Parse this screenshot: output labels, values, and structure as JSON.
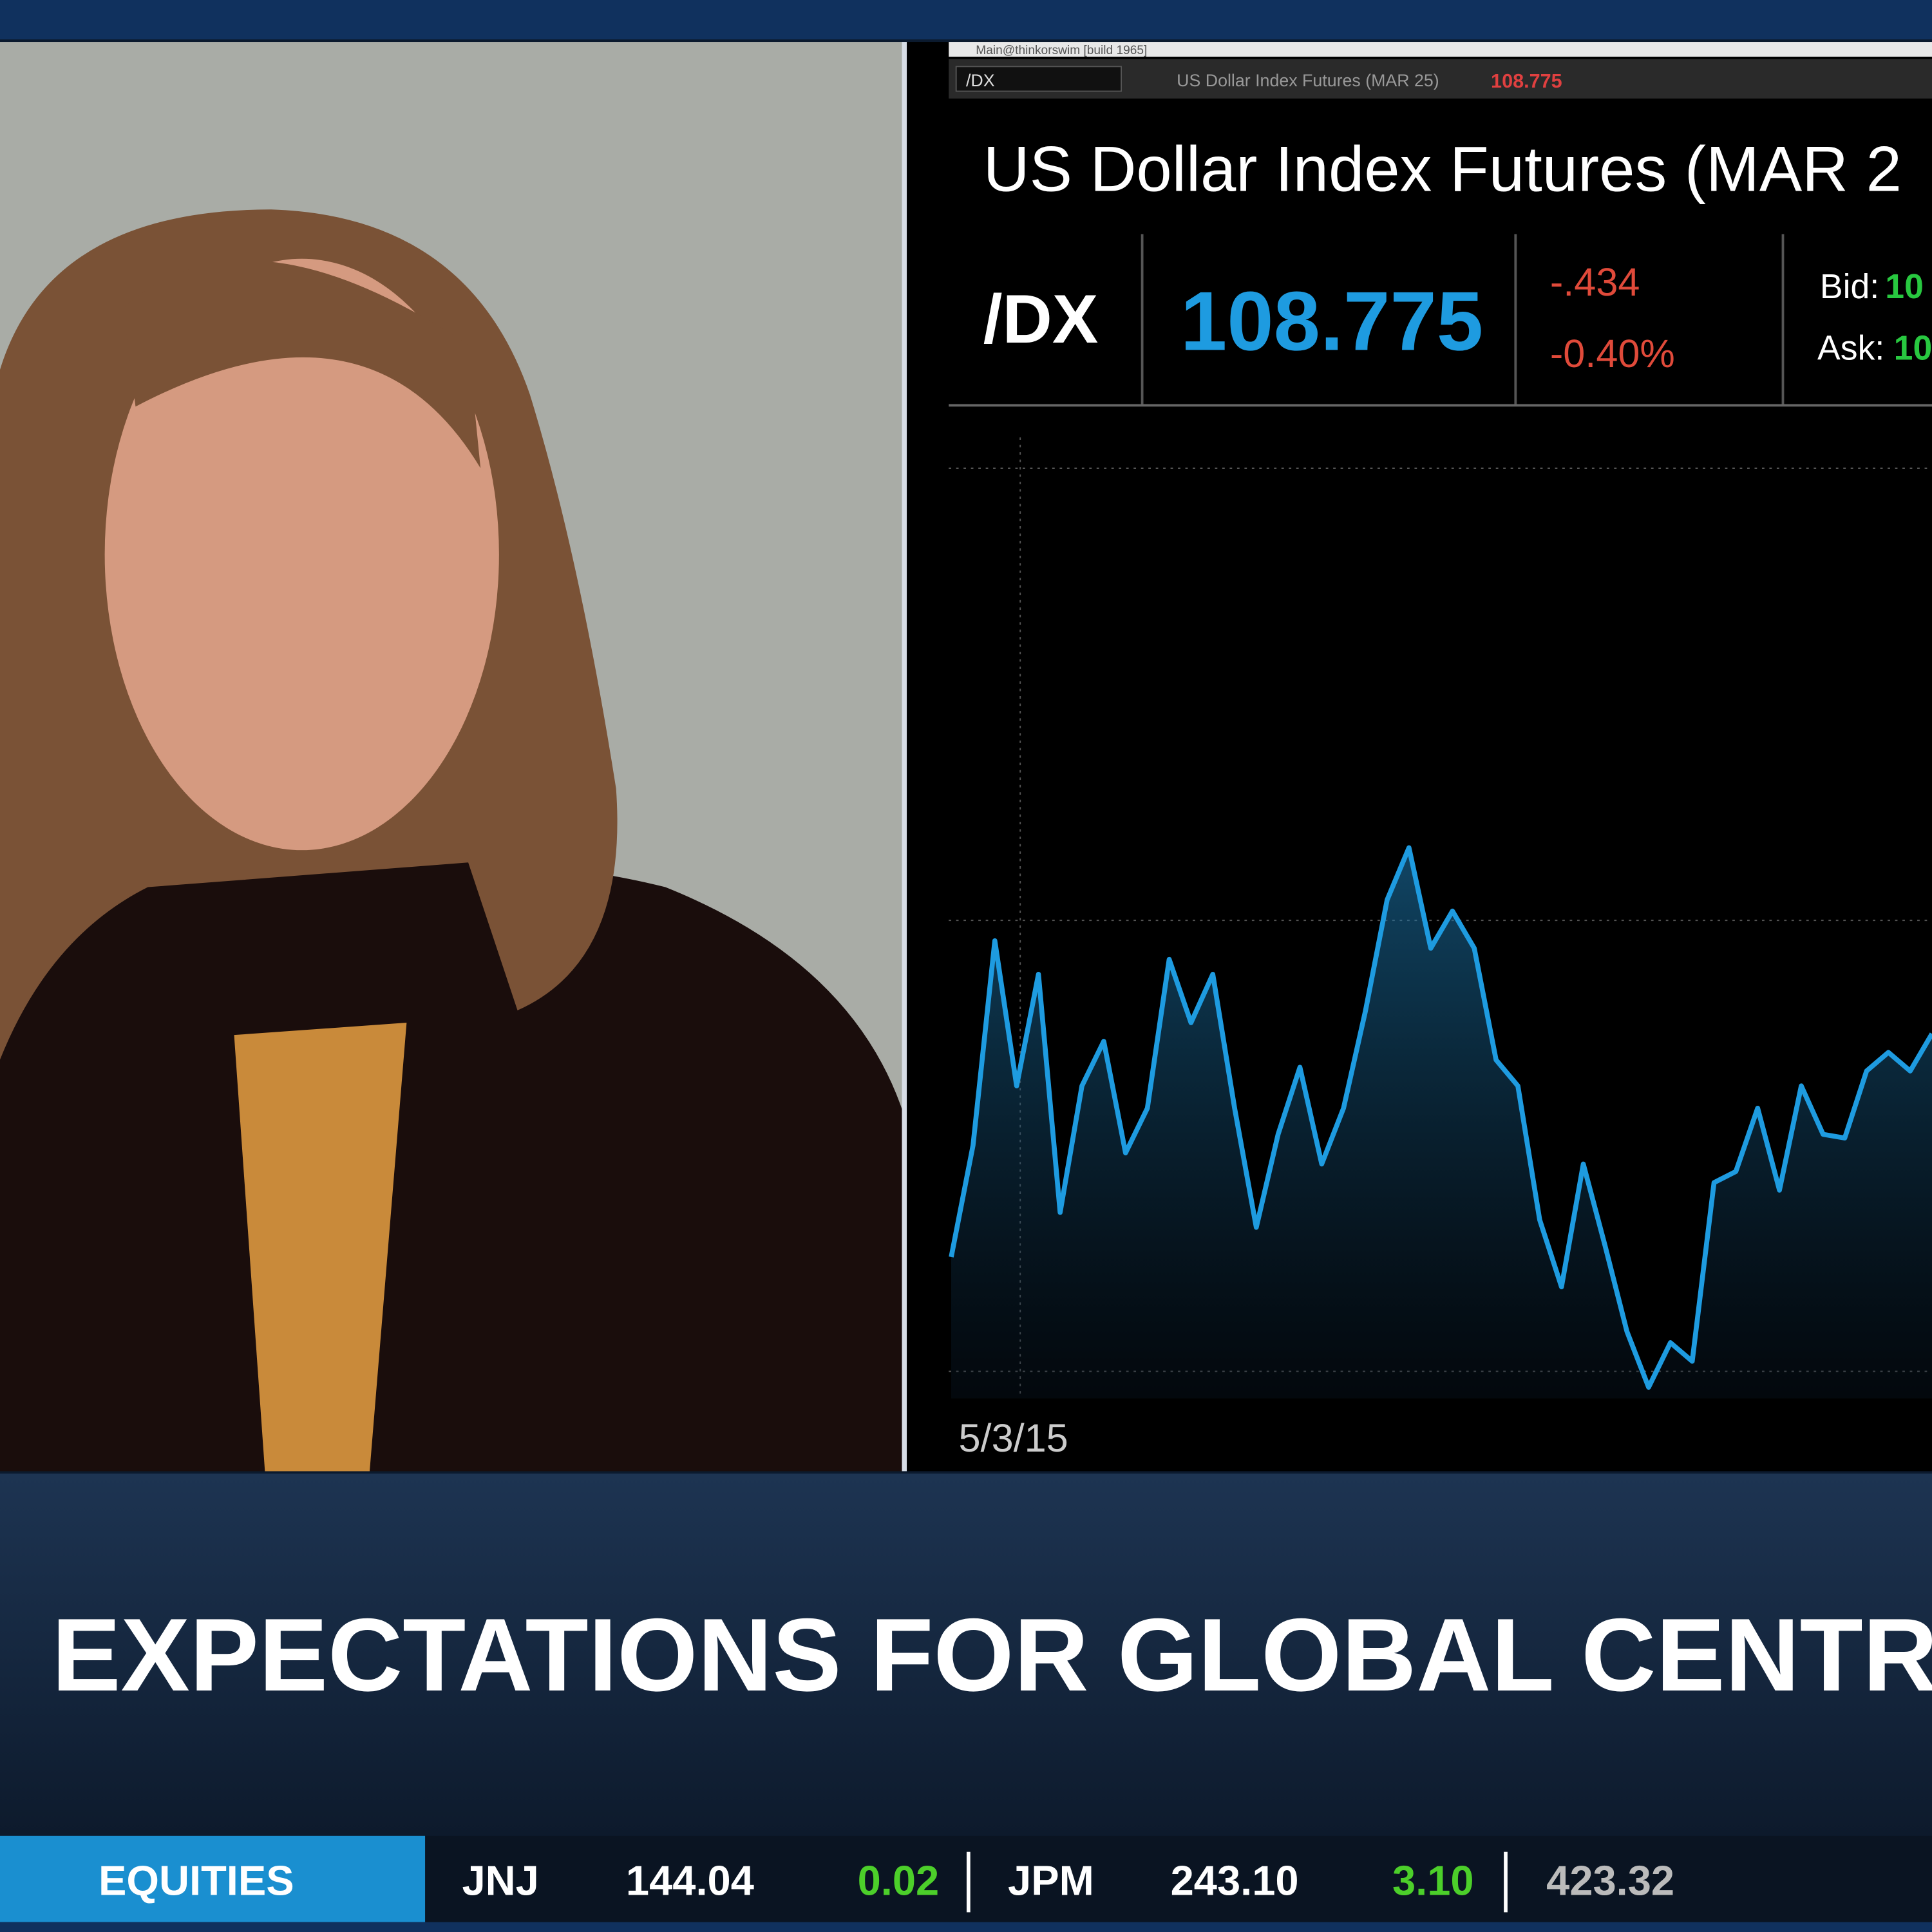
{
  "window": {
    "title": "Main@thinkorswim [build 1965]",
    "symbol_box": "/DX",
    "description": "US Dollar Index Futures (MAR 25)",
    "last": "108.775"
  },
  "quote": {
    "heading": "US Dollar Index Futures (MAR 2",
    "symbol": "/DX",
    "last": "108.775",
    "change": "-.434",
    "change_pct": "-0.40%",
    "bid_label": "Bid:",
    "bid": "10",
    "ask_label": "Ask:",
    "ask": "10"
  },
  "chart_data": {
    "type": "line",
    "x_label": "5/3/15",
    "color": "#1e9be0",
    "ylim": [
      0,
      25
    ],
    "values": [
      3.8,
      6.8,
      12.3,
      8.4,
      11.4,
      5.0,
      8.4,
      9.6,
      6.6,
      7.8,
      11.8,
      10.1,
      11.4,
      7.8,
      4.6,
      7.1,
      8.9,
      6.3,
      7.8,
      10.4,
      13.4,
      14.8,
      12.1,
      13.1,
      12.1,
      9.1,
      8.4,
      4.8,
      3.0,
      6.3,
      4.1,
      1.8,
      0.3,
      1.5,
      1.0,
      5.8,
      6.1,
      7.8,
      5.6,
      8.4,
      7.1,
      7.0,
      8.8,
      9.3,
      8.8,
      9.8
    ]
  },
  "headline": "EXPECTATIONS FOR GLOBAL CENTRA",
  "ticker": {
    "section": "EQUITIES",
    "items": [
      {
        "symbol": "JNJ",
        "price": "144.04",
        "change": "0.02"
      },
      {
        "symbol": "JPM",
        "price": "243.10",
        "change": "3.10"
      }
    ],
    "trailing": "423.32"
  }
}
